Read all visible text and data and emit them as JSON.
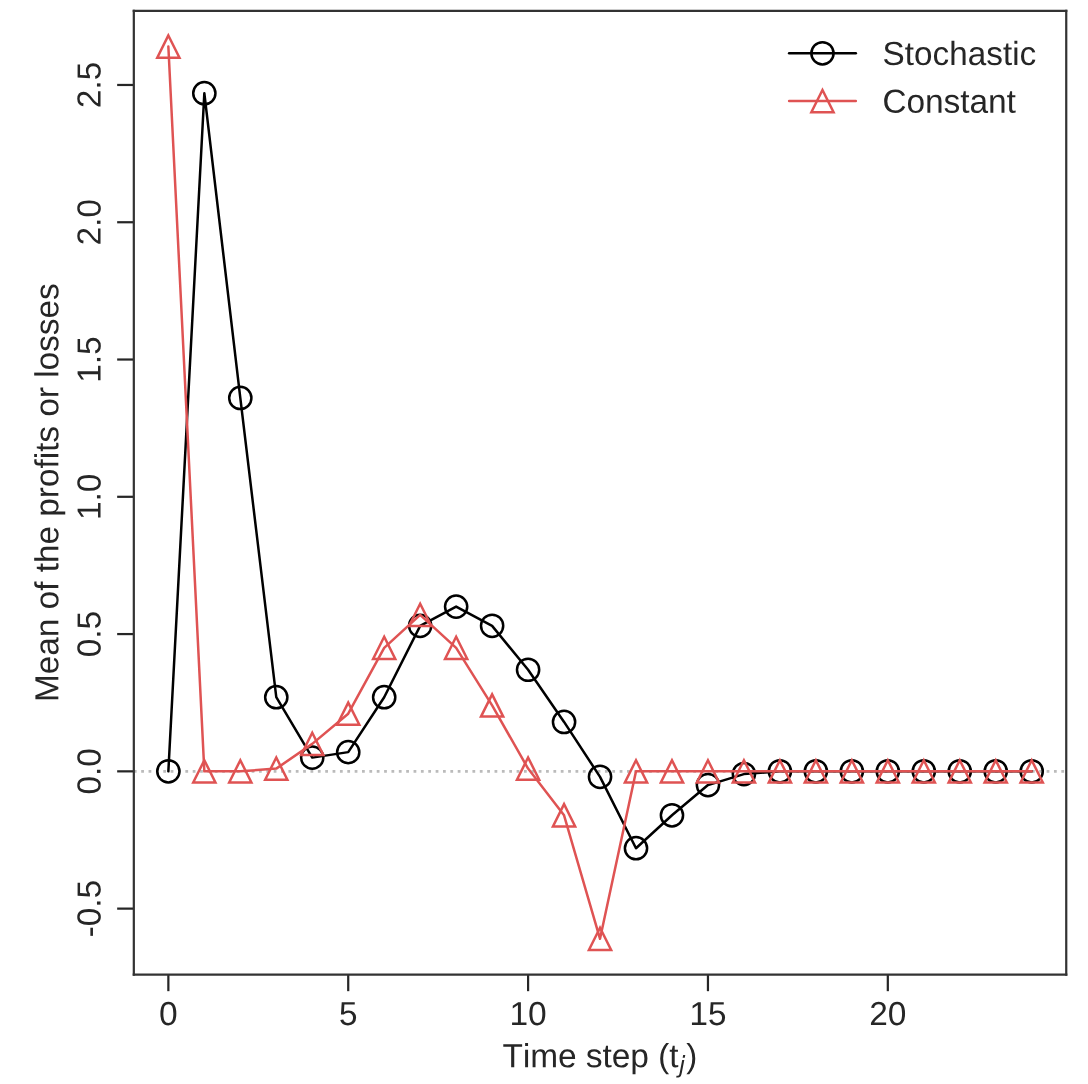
{
  "chart_data": {
    "type": "line",
    "xlabel": "Time step (t$_{j}$)",
    "ylabel": "Mean of the profits or losses",
    "x": [
      0,
      1,
      2,
      3,
      4,
      5,
      6,
      7,
      8,
      9,
      10,
      11,
      12,
      13,
      14,
      15,
      16,
      17,
      18,
      19,
      20,
      21,
      22,
      23,
      24
    ],
    "series": [
      {
        "name": "Stochastic",
        "color": "#000000",
        "marker": "circle",
        "values": [
          0,
          2.47,
          1.36,
          0.27,
          0.05,
          0.07,
          0.27,
          0.53,
          0.6,
          0.53,
          0.37,
          0.18,
          -0.02,
          -0.28,
          -0.16,
          -0.05,
          -0.01,
          0,
          0,
          0,
          0,
          0,
          0,
          0,
          0
        ]
      },
      {
        "name": "Constant",
        "color": "#df5353",
        "marker": "triangle",
        "values": [
          2.64,
          0,
          0,
          0.01,
          0.1,
          0.21,
          0.45,
          0.57,
          0.45,
          0.24,
          0.01,
          -0.16,
          -0.61,
          0,
          0,
          0,
          0,
          0,
          0,
          0,
          0,
          0,
          0,
          0,
          0
        ]
      }
    ],
    "xlim": [
      -0.96,
      24.96
    ],
    "ylim": [
      -0.74,
      2.77
    ],
    "xticks": [
      0,
      5,
      10,
      15,
      20
    ],
    "yticks": [
      -0.5,
      {
        "value": 0,
        "label": "0.0"
      },
      0.5,
      {
        "value": 1,
        "label": "1.0"
      },
      1.5,
      {
        "value": 2,
        "label": "2.0"
      },
      2.5
    ],
    "ref_lines": [
      {
        "axis": "y",
        "value": 0,
        "color": "#bbbbbb",
        "line_style": "dotted"
      }
    ],
    "grid": false,
    "legend": "top right"
  }
}
